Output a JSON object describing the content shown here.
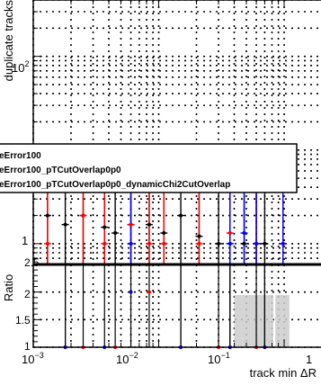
{
  "chart_data": [
    {
      "type": "scatter",
      "panel": "main",
      "ylabel": "duplicate tracks",
      "yscale": "log",
      "xscale": "log",
      "xlim": [
        0.001,
        0.2
      ],
      "ylim": [
        0.6,
        400
      ],
      "y_tick_labels": [
        {
          "text": "1",
          "value": 1
        }
      ],
      "y_decade_label": {
        "base": "10",
        "exponent": "2",
        "value": 100
      },
      "grid": true,
      "legend": {
        "placement": "center-left",
        "entries": [
          {
            "label": "eError100",
            "color": "#000000"
          },
          {
            "label": "eError100_pTCutOverlap0p0",
            "color": "#ff0000"
          },
          {
            "label": "eError100_pTCutOverlap0p0_dynamicChi2CutOverlap",
            "color": "#0000ff"
          }
        ]
      },
      "series": [
        {
          "name": "eError100",
          "color": "#000000",
          "x": [
            0.0013,
            0.0018,
            0.0025,
            0.0037,
            0.0045,
            0.006,
            0.0084,
            0.011,
            0.015,
            0.021,
            0.03,
            0.037,
            0.048,
            0.06,
            0.07
          ],
          "y": [
            2,
            1.6,
            2,
            1.5,
            1.3,
            1.6,
            1.6,
            1.3,
            2,
            1.2,
            1,
            1,
            1,
            1,
            1
          ]
        },
        {
          "name": "eError100_pTCutOverlap0p0",
          "color": "#ff0000",
          "x": [
            0.0013,
            0.0025,
            0.0037,
            0.006,
            0.0084,
            0.011,
            0.021,
            0.037,
            0.06,
            0.098
          ],
          "y": [
            1,
            2,
            1,
            1.6,
            1,
            1,
            1,
            1.3,
            1,
            1
          ]
        },
        {
          "name": "eError100_pTCutOverlap0p0_dynamicChi2CutOverlap",
          "color": "#0000ff",
          "x": [
            0.006,
            0.037,
            0.048,
            0.06,
            0.098
          ],
          "y": [
            1,
            1,
            1.3,
            1,
            1
          ]
        }
      ]
    },
    {
      "type": "scatter",
      "panel": "ratio",
      "ylabel": "Ratio",
      "xlabel": "track min ΔR",
      "xscale": "log",
      "xlim": [
        0.001,
        0.2
      ],
      "ylim": [
        1,
        2.5
      ],
      "x_ticks": [
        {
          "base": "10",
          "exponent": "−3",
          "value": 0.001
        },
        {
          "base": "10",
          "exponent": "−2",
          "value": 0.01
        },
        {
          "base": "10",
          "exponent": "−1",
          "value": 0.1
        }
      ],
      "x_extra_tick": {
        "text": "1",
        "value": 1
      },
      "y_ticks": [
        {
          "text": "1",
          "value": 1
        },
        {
          "text": "1.5",
          "value": 1.5
        },
        {
          "text": "2",
          "value": 2
        },
        {
          "text": "2.5",
          "value": 2.5
        }
      ],
      "grid": true,
      "series": [
        {
          "name": "eError100_pTCutOverlap0p0",
          "color": "#ff0000",
          "x": [
            0.0018,
            0.0025,
            0.0045,
            0.0084,
            0.015,
            0.03,
            0.037,
            0.06,
            0.07
          ],
          "y": [
            1,
            1,
            1,
            2,
            1,
            1,
            1,
            1,
            1
          ]
        },
        {
          "name": "eError100_pTCutOverlap0p0_dynamicChi2CutOverlap",
          "color": "#0000ff",
          "x": [
            0.0018,
            0.0037,
            0.006,
            0.015,
            0.037,
            0.07
          ],
          "y": [
            1,
            1,
            2,
            1,
            1,
            1
          ]
        }
      ],
      "shaded_bins": [
        {
          "x_from": 0.04,
          "x_to": 0.05
        },
        {
          "x_from": 0.05,
          "x_to": 0.065
        },
        {
          "x_from": 0.065,
          "x_to": 0.082
        },
        {
          "x_from": 0.085,
          "x_to": 0.11
        }
      ]
    }
  ]
}
